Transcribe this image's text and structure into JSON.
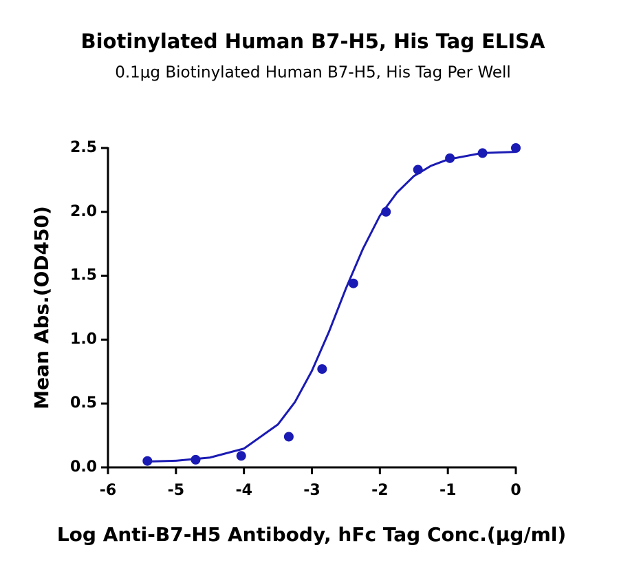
{
  "chart_data": {
    "type": "scatter",
    "title": "Biotinylated Human B7-H5, His Tag ELISA",
    "subtitle": "0.1μg Biotinylated Human B7-H5, His Tag Per Well",
    "xlabel": "Log Anti-B7-H5 Antibody, hFc Tag Conc.(μg/ml)",
    "ylabel": "Mean Abs.(OD450)",
    "color": "#1a1ab4",
    "x": [
      -5.42,
      -4.71,
      -4.04,
      -3.34,
      -2.85,
      -2.39,
      -1.91,
      -1.44,
      -0.97,
      -0.49,
      0
    ],
    "values": [
      0.05,
      0.06,
      0.09,
      0.24,
      0.77,
      1.44,
      2.0,
      2.33,
      2.42,
      2.46,
      2.5
    ],
    "fit": {
      "x": [
        -5.45,
        -5,
        -4.5,
        -4,
        -3.5,
        -3.25,
        -3,
        -2.75,
        -2.5,
        -2.25,
        -2,
        -1.75,
        -1.5,
        -1.25,
        -1,
        -0.5,
        0
      ],
      "values": [
        0.045,
        0.052,
        0.077,
        0.147,
        0.336,
        0.511,
        0.756,
        1.06,
        1.4,
        1.71,
        1.97,
        2.15,
        2.28,
        2.36,
        2.41,
        2.46,
        2.47
      ]
    },
    "xlim": [
      -6,
      0
    ],
    "ylim": [
      0,
      2.5
    ],
    "xticks": [
      -6,
      -5,
      -4,
      -3,
      -2,
      -1,
      0
    ],
    "yticks": [
      {
        "value": 0,
        "label": "0.0"
      },
      0.5,
      {
        "value": 1,
        "label": "1.0"
      },
      1.5,
      {
        "value": 2,
        "label": "2.0"
      },
      2.5
    ]
  }
}
